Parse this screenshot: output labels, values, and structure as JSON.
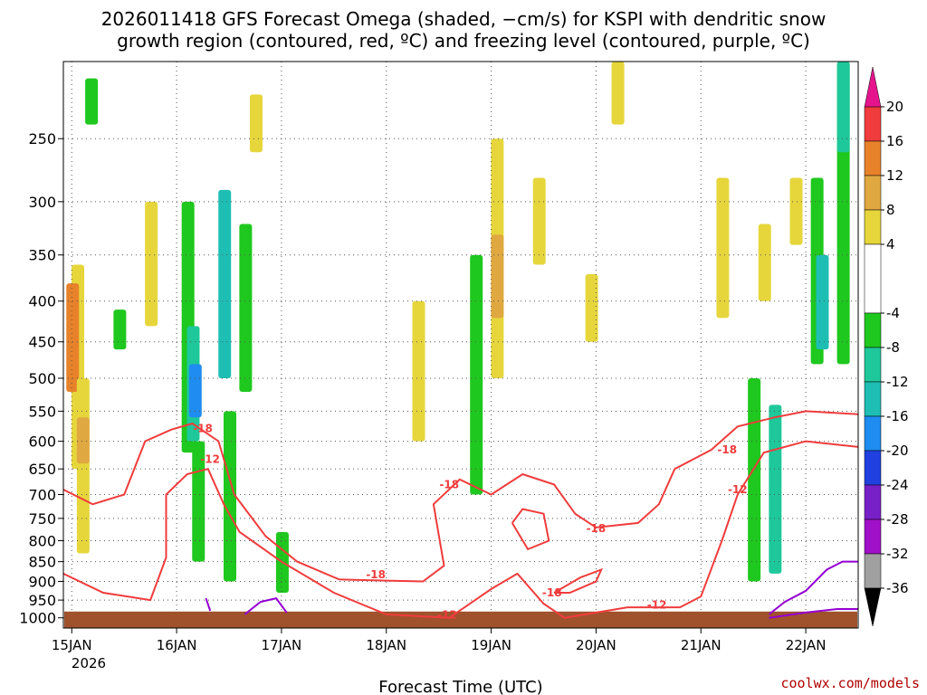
{
  "chart_data": {
    "type": "heatmap",
    "title_line1": "2026011418 GFS Forecast Omega (shaded, −cm/s) for KSPI with dendritic snow",
    "title_line2": "growth region (contoured, red, ºC) and freezing level (contoured, purple, ºC)",
    "xlabel": "Forecast Time (UTC)",
    "ylabel": "",
    "credit": "coolwx.com/models",
    "year_label": "2026",
    "x_ticks": [
      {
        "label": "15JAN",
        "day": 0
      },
      {
        "label": "16JAN",
        "day": 1
      },
      {
        "label": "17JAN",
        "day": 2
      },
      {
        "label": "18JAN",
        "day": 3
      },
      {
        "label": "19JAN",
        "day": 4
      },
      {
        "label": "20JAN",
        "day": 5
      },
      {
        "label": "21JAN",
        "day": 6
      },
      {
        "label": "22JAN",
        "day": 7
      }
    ],
    "x_range_days": [
      -0.08,
      7.5
    ],
    "y_ticks": [
      250,
      300,
      350,
      400,
      450,
      500,
      550,
      600,
      650,
      700,
      750,
      800,
      850,
      900,
      950,
      1000
    ],
    "y_range_hPa": [
      200,
      1030
    ],
    "y_scale": "log-pressure",
    "colorbar": {
      "ticks": [
        "20",
        "16",
        "12",
        "8",
        "4",
        "-4",
        "-8",
        "-12",
        "-16",
        "-20",
        "-24",
        "-28",
        "-32",
        "-36"
      ],
      "bins": [
        {
          "range": [
            16,
            20
          ],
          "color": "#f03c3c"
        },
        {
          "range": [
            12,
            16
          ],
          "color": "#e8822a"
        },
        {
          "range": [
            8,
            12
          ],
          "color": "#e0a840"
        },
        {
          "range": [
            4,
            8
          ],
          "color": "#e6d63c"
        },
        {
          "range": [
            -4,
            4
          ],
          "color": "#ffffff"
        },
        {
          "range": [
            -8,
            -4
          ],
          "color": "#1ec81e"
        },
        {
          "range": [
            -12,
            -8
          ],
          "color": "#1ec89a"
        },
        {
          "range": [
            -16,
            -12
          ],
          "color": "#1ebeb4"
        },
        {
          "range": [
            -20,
            -16
          ],
          "color": "#1e8cf0"
        },
        {
          "range": [
            -24,
            -20
          ],
          "color": "#2040e0"
        },
        {
          "range": [
            -28,
            -24
          ],
          "color": "#7820c8"
        },
        {
          "range": [
            -32,
            -28
          ],
          "color": "#a010c8"
        },
        {
          "range": [
            -36,
            -32
          ],
          "color": "#a0a0a0"
        }
      ],
      "top_arrow_color": "#e6148c",
      "bottom_arrow_color": "#000000"
    },
    "omega_regions": [
      {
        "day": 0.05,
        "p_top": 360,
        "p_bot": 650,
        "color": "#e6d63c"
      },
      {
        "day": 0.0,
        "p_top": 380,
        "p_bot": 520,
        "color": "#e8822a"
      },
      {
        "day": 0.1,
        "p_top": 500,
        "p_bot": 830,
        "color": "#e6d63c"
      },
      {
        "day": 0.1,
        "p_top": 560,
        "p_bot": 640,
        "color": "#e0a840"
      },
      {
        "day": 0.18,
        "p_top": 210,
        "p_bot": 240,
        "color": "#1ec81e"
      },
      {
        "day": 0.45,
        "p_top": 410,
        "p_bot": 460,
        "color": "#1ec81e"
      },
      {
        "day": 0.75,
        "p_top": 300,
        "p_bot": 430,
        "color": "#e6d63c"
      },
      {
        "day": 1.1,
        "p_top": 300,
        "p_bot": 620,
        "color": "#1ec81e"
      },
      {
        "day": 1.15,
        "p_top": 430,
        "p_bot": 600,
        "color": "#1ec89a"
      },
      {
        "day": 1.17,
        "p_top": 480,
        "p_bot": 560,
        "color": "#1e8cf0"
      },
      {
        "day": 1.2,
        "p_top": 600,
        "p_bot": 850,
        "color": "#1ec81e"
      },
      {
        "day": 1.45,
        "p_top": 290,
        "p_bot": 500,
        "color": "#1ebeb4"
      },
      {
        "day": 1.5,
        "p_top": 550,
        "p_bot": 900,
        "color": "#1ec81e"
      },
      {
        "day": 1.65,
        "p_top": 320,
        "p_bot": 520,
        "color": "#1ec81e"
      },
      {
        "day": 1.75,
        "p_top": 220,
        "p_bot": 260,
        "color": "#e6d63c"
      },
      {
        "day": 2.0,
        "p_top": 780,
        "p_bot": 930,
        "color": "#1ec81e"
      },
      {
        "day": 3.3,
        "p_top": 400,
        "p_bot": 600,
        "color": "#e6d63c"
      },
      {
        "day": 3.85,
        "p_top": 350,
        "p_bot": 700,
        "color": "#1ec81e"
      },
      {
        "day": 4.05,
        "p_top": 250,
        "p_bot": 500,
        "color": "#e6d63c"
      },
      {
        "day": 4.05,
        "p_top": 330,
        "p_bot": 420,
        "color": "#e0a840"
      },
      {
        "day": 4.45,
        "p_top": 280,
        "p_bot": 360,
        "color": "#e6d63c"
      },
      {
        "day": 4.95,
        "p_top": 370,
        "p_bot": 450,
        "color": "#e6d63c"
      },
      {
        "day": 5.2,
        "p_top": 200,
        "p_bot": 240,
        "color": "#e6d63c"
      },
      {
        "day": 6.2,
        "p_top": 280,
        "p_bot": 420,
        "color": "#e6d63c"
      },
      {
        "day": 6.6,
        "p_top": 320,
        "p_bot": 400,
        "color": "#e6d63c"
      },
      {
        "day": 6.9,
        "p_top": 280,
        "p_bot": 340,
        "color": "#e6d63c"
      },
      {
        "day": 7.1,
        "p_top": 280,
        "p_bot": 480,
        "color": "#1ec81e"
      },
      {
        "day": 7.15,
        "p_top": 350,
        "p_bot": 460,
        "color": "#1ebeb4"
      },
      {
        "day": 7.35,
        "p_top": 200,
        "p_bot": 480,
        "color": "#1ec81e"
      },
      {
        "day": 7.35,
        "p_top": 200,
        "p_bot": 260,
        "color": "#1ec89a"
      },
      {
        "day": 6.5,
        "p_top": 500,
        "p_bot": 900,
        "color": "#1ec81e"
      },
      {
        "day": 6.7,
        "p_top": 540,
        "p_bot": 880,
        "color": "#1ec89a"
      }
    ],
    "freezing_level_contours": [
      {
        "points": [
          [
            1.28,
            945
          ],
          [
            1.32,
            980
          ]
        ]
      },
      {
        "points": [
          [
            1.65,
            990
          ],
          [
            1.8,
            955
          ],
          [
            1.95,
            945
          ],
          [
            2.05,
            985
          ]
        ]
      },
      {
        "points": [
          [
            6.65,
            990
          ],
          [
            6.8,
            955
          ],
          [
            7.0,
            925
          ],
          [
            7.2,
            870
          ],
          [
            7.35,
            850
          ],
          [
            7.5,
            850
          ]
        ]
      },
      {
        "points": [
          [
            6.65,
            1000
          ],
          [
            7.0,
            985
          ],
          [
            7.3,
            975
          ],
          [
            7.5,
            975
          ]
        ]
      }
    ],
    "snow_growth_contours": [
      {
        "label": "-18",
        "label_at": [
          1.2,
          578
        ],
        "points": [
          [
            -0.08,
            690
          ],
          [
            0.2,
            720
          ],
          [
            0.5,
            700
          ],
          [
            0.7,
            600
          ],
          [
            0.95,
            580
          ],
          [
            1.15,
            570
          ],
          [
            1.4,
            600
          ],
          [
            1.55,
            700
          ],
          [
            1.85,
            790
          ],
          [
            2.15,
            850
          ],
          [
            2.55,
            895
          ],
          [
            3.0,
            898
          ],
          [
            3.35,
            900
          ],
          [
            3.55,
            860
          ],
          [
            3.45,
            720
          ],
          [
            3.7,
            670
          ],
          [
            4.0,
            700
          ],
          [
            4.3,
            660
          ],
          [
            4.6,
            680
          ],
          [
            4.8,
            740
          ],
          [
            5.0,
            770
          ],
          [
            5.4,
            760
          ],
          [
            5.6,
            720
          ],
          [
            5.75,
            650
          ],
          [
            6.1,
            615
          ],
          [
            6.35,
            575
          ],
          [
            6.7,
            560
          ],
          [
            7.0,
            550
          ],
          [
            7.5,
            555
          ]
        ]
      },
      {
        "label": "-12",
        "label_at": [
          1.3,
          630
        ],
        "points": [
          [
            -0.08,
            880
          ],
          [
            0.3,
            930
          ],
          [
            0.75,
            950
          ],
          [
            0.9,
            840
          ],
          [
            0.9,
            700
          ],
          [
            1.1,
            660
          ],
          [
            1.3,
            650
          ],
          [
            1.45,
            720
          ],
          [
            1.6,
            780
          ],
          [
            2.0,
            850
          ],
          [
            2.5,
            930
          ],
          [
            3.0,
            990
          ],
          [
            3.6,
            1000
          ],
          [
            4.0,
            920
          ],
          [
            4.25,
            880
          ],
          [
            4.5,
            960
          ],
          [
            4.7,
            1000
          ],
          [
            5.3,
            970
          ],
          [
            5.8,
            970
          ],
          [
            6.0,
            940
          ],
          [
            6.2,
            800
          ],
          [
            6.35,
            700
          ],
          [
            6.6,
            620
          ],
          [
            7.0,
            600
          ],
          [
            7.5,
            610
          ]
        ]
      },
      {
        "label": "-18",
        "label_at": [
          4.05,
          790
        ],
        "points": [
          [
            4.2,
            760
          ],
          [
            4.35,
            820
          ],
          [
            4.55,
            800
          ],
          [
            4.5,
            740
          ],
          [
            4.3,
            730
          ],
          [
            4.2,
            760
          ]
        ]
      },
      {
        "label": "-18",
        "label_at": [
          5.0,
          940
        ],
        "points": [
          [
            4.6,
            930
          ],
          [
            4.85,
            890
          ],
          [
            5.05,
            870
          ],
          [
            5.0,
            900
          ],
          [
            4.75,
            930
          ],
          [
            4.6,
            930
          ]
        ]
      }
    ],
    "contour_labels": [
      {
        "text": "-18",
        "day": 1.25,
        "p": 578
      },
      {
        "text": "-12",
        "day": 1.32,
        "p": 632
      },
      {
        "text": "-18",
        "day": 3.6,
        "p": 680
      },
      {
        "text": "-18",
        "day": 2.9,
        "p": 883
      },
      {
        "text": "-12",
        "day": 3.58,
        "p": 992
      },
      {
        "text": "-18",
        "day": 5.0,
        "p": 772
      },
      {
        "text": "-18",
        "day": 4.58,
        "p": 930
      },
      {
        "text": "-12",
        "day": 5.58,
        "p": 963
      },
      {
        "text": "-18",
        "day": 6.25,
        "p": 615
      },
      {
        "text": "-12",
        "day": 6.35,
        "p": 690
      }
    ]
  }
}
